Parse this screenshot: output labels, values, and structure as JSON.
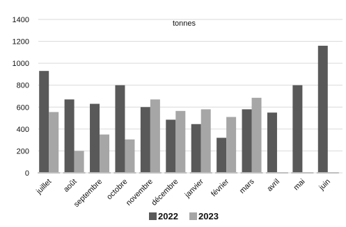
{
  "chart_data": {
    "type": "bar",
    "unit_label": "tonnes",
    "categories": [
      "juillet",
      "août",
      "septembre",
      "octobre",
      "novembre",
      "décembre",
      "janvier",
      "février",
      "mars",
      "avril",
      "mai",
      "juin"
    ],
    "series": [
      {
        "name": "2022",
        "color": "#595959",
        "values": [
          930,
          670,
          630,
          800,
          600,
          485,
          445,
          320,
          580,
          550,
          800,
          1160
        ]
      },
      {
        "name": "2023",
        "color": "#a6a6a6",
        "values": [
          555,
          200,
          350,
          305,
          670,
          565,
          580,
          510,
          685,
          null,
          null,
          null
        ]
      }
    ],
    "ylim": [
      0,
      1400
    ],
    "yticks": [
      0,
      200,
      400,
      600,
      800,
      1000,
      1200,
      1400
    ],
    "grid": true,
    "legend_position": "bottom"
  }
}
